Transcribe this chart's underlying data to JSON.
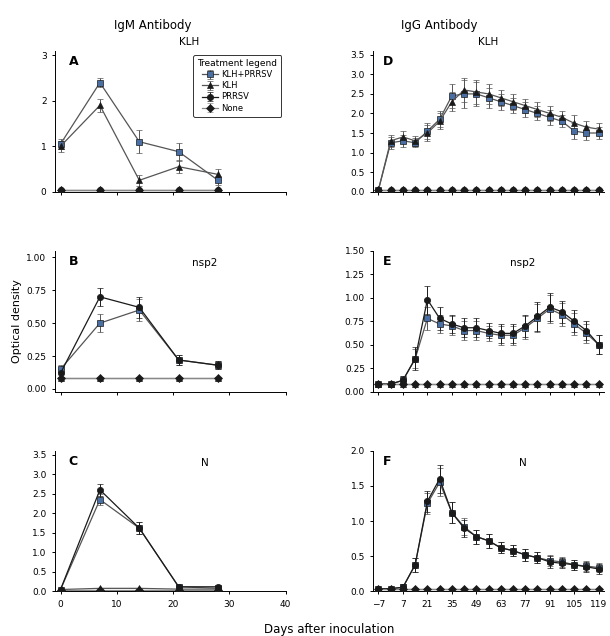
{
  "left_col_title": "IgM Antibody",
  "right_col_title": "IgG Antibody",
  "ylabel": "Optical density",
  "xlabel": "Days after inoculation",
  "legend_title": "Treatment legend",
  "legend_labels": [
    "KLH+PRRSV",
    "KLH",
    "PRRSV",
    "None"
  ],
  "left_xlim": [
    -1,
    40
  ],
  "left_xticks": [
    0,
    10,
    20,
    30,
    40
  ],
  "right_xlim": [
    -10,
    122
  ],
  "right_xticks": [
    -7,
    7,
    21,
    35,
    49,
    63,
    77,
    91,
    105,
    119
  ],
  "A_ylim": [
    0,
    3.1
  ],
  "A_yticks": [
    0,
    1,
    2,
    3
  ],
  "B_ylim": [
    -0.02,
    1.05
  ],
  "B_yticks": [
    0.0,
    0.25,
    0.5,
    0.75,
    1.0
  ],
  "C_ylim": [
    0,
    3.6
  ],
  "C_yticks": [
    0.0,
    0.5,
    1.0,
    1.5,
    2.0,
    2.5,
    3.0,
    3.5
  ],
  "D_ylim": [
    0,
    3.6
  ],
  "D_yticks": [
    0.0,
    0.5,
    1.0,
    1.5,
    2.0,
    2.5,
    3.0,
    3.5
  ],
  "E_ylim": [
    0,
    1.5
  ],
  "E_yticks": [
    0.0,
    0.25,
    0.5,
    0.75,
    1.0,
    1.25,
    1.5
  ],
  "F_ylim": [
    0,
    2.0
  ],
  "F_yticks": [
    0.0,
    0.5,
    1.0,
    1.5,
    2.0
  ],
  "A_data": {
    "x": [
      0,
      7,
      14,
      21,
      28
    ],
    "KLH_PRRSV": [
      1.05,
      2.4,
      1.1,
      0.88,
      0.25
    ],
    "KLH_PRRSV_err": [
      0.12,
      0.1,
      0.25,
      0.2,
      0.1
    ],
    "KLH": [
      1.0,
      1.9,
      0.25,
      0.55,
      0.38
    ],
    "KLH_err": [
      0.12,
      0.15,
      0.12,
      0.15,
      0.12
    ],
    "PRRSV": [
      0.04,
      0.04,
      0.04,
      0.04,
      0.04
    ],
    "PRRSV_err": [
      0.01,
      0.01,
      0.01,
      0.01,
      0.01
    ],
    "None": [
      0.04,
      0.04,
      0.04,
      0.04,
      0.04
    ],
    "None_err": [
      0.01,
      0.01,
      0.01,
      0.01,
      0.01
    ]
  },
  "B_data": {
    "x": [
      0,
      7,
      14,
      21,
      28
    ],
    "KLH_PRRSV": [
      0.15,
      0.5,
      0.6,
      0.22,
      0.18
    ],
    "KLH_PRRSV_err": [
      0.03,
      0.07,
      0.08,
      0.04,
      0.03
    ],
    "KLH": [
      0.08,
      0.08,
      0.08,
      0.08,
      0.08
    ],
    "KLH_err": [
      0.01,
      0.01,
      0.01,
      0.01,
      0.01
    ],
    "PRRSV": [
      0.12,
      0.7,
      0.62,
      0.22,
      0.18
    ],
    "PRRSV_err": [
      0.03,
      0.07,
      0.08,
      0.04,
      0.03
    ],
    "None": [
      0.08,
      0.08,
      0.08,
      0.08,
      0.08
    ],
    "None_err": [
      0.01,
      0.01,
      0.01,
      0.01,
      0.01
    ]
  },
  "C_data": {
    "x": [
      0,
      7,
      14,
      21,
      28
    ],
    "KLH_PRRSV": [
      0.05,
      2.35,
      1.62,
      0.12,
      0.08
    ],
    "KLH_PRRSV_err": [
      0.02,
      0.15,
      0.15,
      0.04,
      0.03
    ],
    "KLH": [
      0.05,
      0.08,
      0.08,
      0.06,
      0.06
    ],
    "KLH_err": [
      0.01,
      0.01,
      0.01,
      0.01,
      0.01
    ],
    "PRRSV": [
      0.05,
      2.6,
      1.62,
      0.12,
      0.12
    ],
    "PRRSV_err": [
      0.02,
      0.15,
      0.15,
      0.04,
      0.03
    ],
    "None": [
      0.04,
      0.04,
      0.04,
      0.04,
      0.04
    ],
    "None_err": [
      0.01,
      0.01,
      0.01,
      0.01,
      0.01
    ]
  },
  "D_data": {
    "x": [
      -7,
      0,
      7,
      14,
      21,
      28,
      35,
      42,
      49,
      56,
      63,
      70,
      77,
      84,
      91,
      98,
      105,
      112,
      119
    ],
    "KLH_PRRSV": [
      0.05,
      1.25,
      1.3,
      1.25,
      1.55,
      1.85,
      2.45,
      2.5,
      2.5,
      2.4,
      2.3,
      2.2,
      2.1,
      2.0,
      1.9,
      1.8,
      1.55,
      1.5,
      1.5
    ],
    "KLH_PRRSV_err": [
      0.02,
      0.15,
      0.15,
      0.12,
      0.2,
      0.2,
      0.3,
      0.35,
      0.3,
      0.25,
      0.2,
      0.2,
      0.18,
      0.18,
      0.2,
      0.15,
      0.2,
      0.18,
      0.15
    ],
    "KLH": [
      0.05,
      1.3,
      1.4,
      1.3,
      1.5,
      1.8,
      2.3,
      2.6,
      2.55,
      2.5,
      2.4,
      2.3,
      2.2,
      2.1,
      2.0,
      1.9,
      1.75,
      1.65,
      1.6
    ],
    "KLH_err": [
      0.02,
      0.15,
      0.15,
      0.12,
      0.2,
      0.2,
      0.25,
      0.3,
      0.3,
      0.25,
      0.2,
      0.2,
      0.18,
      0.18,
      0.2,
      0.15,
      0.2,
      0.15,
      0.15
    ],
    "PRRSV": [
      0.04,
      0.04,
      0.04,
      0.04,
      0.04,
      0.04,
      0.04,
      0.04,
      0.04,
      0.04,
      0.04,
      0.04,
      0.04,
      0.04,
      0.04,
      0.04,
      0.04,
      0.04,
      0.04
    ],
    "PRRSV_err": [
      0.01,
      0.01,
      0.01,
      0.01,
      0.01,
      0.01,
      0.01,
      0.01,
      0.01,
      0.01,
      0.01,
      0.01,
      0.01,
      0.01,
      0.01,
      0.01,
      0.01,
      0.01,
      0.01
    ],
    "None": [
      0.04,
      0.04,
      0.04,
      0.04,
      0.04,
      0.04,
      0.04,
      0.04,
      0.04,
      0.04,
      0.04,
      0.04,
      0.04,
      0.04,
      0.04,
      0.04,
      0.04,
      0.04,
      0.04
    ],
    "None_err": [
      0.01,
      0.01,
      0.01,
      0.01,
      0.01,
      0.01,
      0.01,
      0.01,
      0.01,
      0.01,
      0.01,
      0.01,
      0.01,
      0.01,
      0.01,
      0.01,
      0.01,
      0.01,
      0.01
    ]
  },
  "E_data": {
    "x": [
      -7,
      0,
      7,
      14,
      21,
      28,
      35,
      42,
      49,
      56,
      63,
      70,
      77,
      84,
      91,
      98,
      105,
      112,
      119
    ],
    "KLH_PRRSV": [
      0.08,
      0.08,
      0.12,
      0.35,
      0.78,
      0.72,
      0.7,
      0.65,
      0.65,
      0.62,
      0.6,
      0.6,
      0.68,
      0.78,
      0.88,
      0.82,
      0.72,
      0.62,
      0.5
    ],
    "KLH_PRRSV_err": [
      0.01,
      0.01,
      0.05,
      0.1,
      0.12,
      0.1,
      0.1,
      0.1,
      0.1,
      0.08,
      0.1,
      0.1,
      0.12,
      0.15,
      0.15,
      0.12,
      0.12,
      0.1,
      0.1
    ],
    "KLH": [
      0.08,
      0.08,
      0.08,
      0.08,
      0.08,
      0.08,
      0.08,
      0.08,
      0.08,
      0.08,
      0.08,
      0.08,
      0.08,
      0.08,
      0.08,
      0.08,
      0.08,
      0.08,
      0.08
    ],
    "KLH_err": [
      0.01,
      0.01,
      0.01,
      0.01,
      0.01,
      0.01,
      0.01,
      0.01,
      0.01,
      0.01,
      0.01,
      0.01,
      0.01,
      0.01,
      0.01,
      0.01,
      0.01,
      0.01,
      0.01
    ],
    "PRRSV": [
      0.08,
      0.08,
      0.12,
      0.35,
      0.98,
      0.78,
      0.72,
      0.68,
      0.68,
      0.65,
      0.62,
      0.62,
      0.7,
      0.8,
      0.9,
      0.85,
      0.75,
      0.65,
      0.5
    ],
    "PRRSV_err": [
      0.01,
      0.01,
      0.05,
      0.12,
      0.15,
      0.12,
      0.1,
      0.1,
      0.1,
      0.08,
      0.1,
      0.1,
      0.12,
      0.15,
      0.15,
      0.12,
      0.12,
      0.1,
      0.1
    ],
    "None": [
      0.08,
      0.08,
      0.08,
      0.08,
      0.08,
      0.08,
      0.08,
      0.08,
      0.08,
      0.08,
      0.08,
      0.08,
      0.08,
      0.08,
      0.08,
      0.08,
      0.08,
      0.08,
      0.08
    ],
    "None_err": [
      0.01,
      0.01,
      0.01,
      0.01,
      0.01,
      0.01,
      0.01,
      0.01,
      0.01,
      0.01,
      0.01,
      0.01,
      0.01,
      0.01,
      0.01,
      0.01,
      0.01,
      0.01,
      0.01
    ]
  },
  "F_data": {
    "x": [
      -7,
      0,
      7,
      14,
      21,
      28,
      35,
      42,
      49,
      56,
      63,
      70,
      77,
      84,
      91,
      98,
      105,
      112,
      119
    ],
    "KLH_PRRSV": [
      0.04,
      0.04,
      0.06,
      0.38,
      1.25,
      1.55,
      1.12,
      0.92,
      0.78,
      0.72,
      0.62,
      0.58,
      0.52,
      0.48,
      0.44,
      0.42,
      0.38,
      0.36,
      0.34
    ],
    "KLH_PRRSV_err": [
      0.01,
      0.01,
      0.04,
      0.1,
      0.15,
      0.2,
      0.15,
      0.12,
      0.1,
      0.1,
      0.08,
      0.08,
      0.08,
      0.08,
      0.08,
      0.07,
      0.07,
      0.07,
      0.07
    ],
    "KLH": [
      0.04,
      0.04,
      0.04,
      0.04,
      0.04,
      0.04,
      0.04,
      0.04,
      0.04,
      0.04,
      0.04,
      0.04,
      0.04,
      0.04,
      0.04,
      0.04,
      0.04,
      0.04,
      0.04
    ],
    "KLH_err": [
      0.01,
      0.01,
      0.01,
      0.01,
      0.01,
      0.01,
      0.01,
      0.01,
      0.01,
      0.01,
      0.01,
      0.01,
      0.01,
      0.01,
      0.01,
      0.01,
      0.01,
      0.01,
      0.01
    ],
    "PRRSV": [
      0.04,
      0.04,
      0.06,
      0.38,
      1.28,
      1.6,
      1.12,
      0.9,
      0.78,
      0.72,
      0.62,
      0.58,
      0.52,
      0.48,
      0.42,
      0.4,
      0.38,
      0.35,
      0.32
    ],
    "PRRSV_err": [
      0.01,
      0.01,
      0.04,
      0.1,
      0.15,
      0.2,
      0.15,
      0.12,
      0.1,
      0.1,
      0.08,
      0.08,
      0.08,
      0.08,
      0.08,
      0.07,
      0.07,
      0.07,
      0.07
    ],
    "None": [
      0.04,
      0.04,
      0.04,
      0.04,
      0.04,
      0.04,
      0.04,
      0.04,
      0.04,
      0.04,
      0.04,
      0.04,
      0.04,
      0.04,
      0.04,
      0.04,
      0.04,
      0.04,
      0.04
    ],
    "None_err": [
      0.01,
      0.01,
      0.01,
      0.01,
      0.01,
      0.01,
      0.01,
      0.01,
      0.01,
      0.01,
      0.01,
      0.01,
      0.01,
      0.01,
      0.01,
      0.01,
      0.01,
      0.01,
      0.01
    ]
  }
}
